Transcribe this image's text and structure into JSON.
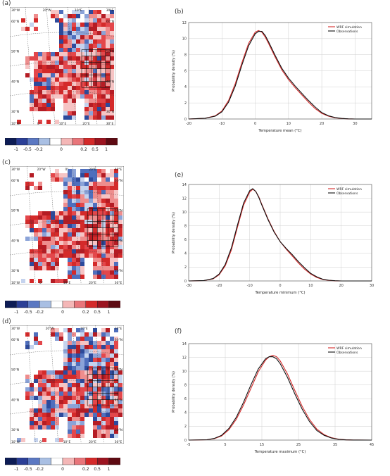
{
  "panels": [
    {
      "map_letter": "(a)",
      "chart_letter": "(b)",
      "colorbar_ticks": [
        "-1",
        "-0.5",
        "-0.2",
        "0",
        "0.2",
        "0.5",
        "1"
      ],
      "map_top_ticks": [
        "30°W",
        "20°W",
        "10°E",
        "30°E"
      ],
      "map_bottom_ticks": [
        "10°W",
        "0°",
        "10°E",
        "20°E",
        "30°E"
      ],
      "map_side_ticks": [
        "60°N",
        "50°N",
        "40°N",
        "30°N"
      ]
    },
    {
      "map_letter": "(c)",
      "chart_letter": "(e)",
      "colorbar_ticks": [
        "-1",
        "-0.5",
        "-0.2",
        "0",
        "0.2",
        "0.5",
        "1"
      ],
      "map_top_ticks": [
        "30°W",
        "20°W",
        "0°",
        "20°E",
        "40°E"
      ],
      "map_bottom_ticks": [
        "10°W",
        "0°",
        "10°E",
        "20°E",
        "30°E"
      ],
      "map_side_ticks": [
        "60°N",
        "50°N",
        "40°N",
        "30°N"
      ]
    },
    {
      "map_letter": "(d)",
      "chart_letter": "(f)",
      "colorbar_ticks": [
        "-1",
        "-0.5",
        "-0.2",
        "0",
        "0.2",
        "0.5",
        "1"
      ],
      "map_top_ticks": [
        "30°W",
        "20°W",
        "10°E",
        "30°E"
      ],
      "map_bottom_ticks": [
        "10°W",
        "0°",
        "10°E",
        "20°E",
        "30°E"
      ],
      "map_side_ticks": [
        "60°N",
        "50°N",
        "40°N",
        "30°N"
      ]
    }
  ],
  "colors": {
    "red": "#d42a2a",
    "black": "#111111",
    "grid": "#cfcfcf"
  },
  "chart_data": [
    {
      "type": "line",
      "xlabel": "Temperature mean (°C)",
      "ylabel": "Probability density (%)",
      "xlim": [
        -20,
        35
      ],
      "ylim": [
        0,
        12
      ],
      "xticks": [
        -20,
        -10,
        0,
        10,
        20,
        30
      ],
      "yticks": [
        0,
        2,
        4,
        6,
        8,
        10,
        12
      ],
      "legend_position": "top-right",
      "series": [
        {
          "name": "WRF simulation",
          "color": "#d42a2a",
          "x": [
            -20,
            -15,
            -12,
            -10,
            -8,
            -6,
            -4,
            -2,
            0,
            1,
            2,
            3,
            4,
            6,
            8,
            10,
            12,
            14,
            16,
            18,
            20,
            22,
            24,
            26,
            28,
            30,
            35
          ],
          "y": [
            0,
            0.1,
            0.4,
            1.0,
            2.3,
            4.4,
            7.0,
            9.4,
            10.8,
            11.0,
            10.8,
            10.2,
            9.4,
            7.7,
            6.1,
            4.9,
            3.9,
            3.0,
            2.1,
            1.3,
            0.7,
            0.35,
            0.15,
            0.06,
            0.02,
            0,
            0
          ]
        },
        {
          "name": "Observations",
          "color": "#111111",
          "x": [
            -20,
            -15,
            -12,
            -10,
            -8,
            -6,
            -4,
            -2,
            0,
            1,
            2,
            3,
            4,
            6,
            8,
            10,
            12,
            14,
            16,
            18,
            20,
            22,
            24,
            26,
            28,
            30,
            35
          ],
          "y": [
            0,
            0.1,
            0.35,
            0.9,
            2.1,
            4.1,
            6.7,
            9.1,
            10.6,
            10.9,
            10.9,
            10.4,
            9.6,
            7.9,
            6.3,
            5.1,
            4.1,
            3.2,
            2.3,
            1.5,
            0.8,
            0.4,
            0.18,
            0.07,
            0.02,
            0,
            0
          ]
        }
      ]
    },
    {
      "type": "line",
      "xlabel": "Temperature minimum (°C)",
      "ylabel": "Probability density (%)",
      "xlim": [
        -30,
        30
      ],
      "ylim": [
        0,
        14
      ],
      "xticks": [
        -30,
        -20,
        -10,
        0,
        10,
        20,
        30
      ],
      "yticks": [
        0,
        2,
        4,
        6,
        8,
        10,
        12,
        14
      ],
      "legend_position": "top-right",
      "series": [
        {
          "name": "WRF simulation",
          "color": "#d42a2a",
          "x": [
            -30,
            -25,
            -22,
            -20,
            -18,
            -16,
            -14,
            -12,
            -10,
            -9,
            -8,
            -7,
            -6,
            -4,
            -2,
            0,
            2,
            4,
            6,
            8,
            10,
            12,
            14,
            16,
            18,
            20,
            30
          ],
          "y": [
            0,
            0.05,
            0.3,
            0.9,
            2.2,
            4.5,
            7.8,
            11.0,
            12.9,
            13.3,
            13.0,
            12.2,
            11.1,
            9.0,
            7.2,
            5.7,
            4.6,
            3.6,
            2.6,
            1.7,
            1.0,
            0.5,
            0.2,
            0.08,
            0.02,
            0,
            0
          ]
        },
        {
          "name": "Observations",
          "color": "#111111",
          "x": [
            -30,
            -25,
            -22,
            -20,
            -18,
            -16,
            -14,
            -12,
            -10,
            -9,
            -8,
            -7,
            -6,
            -4,
            -2,
            0,
            2,
            4,
            6,
            8,
            10,
            12,
            14,
            16,
            18,
            20,
            30
          ],
          "y": [
            0,
            0.06,
            0.35,
            1.0,
            2.4,
            4.8,
            8.1,
            11.3,
            13.1,
            13.4,
            13.0,
            12.1,
            11.0,
            8.9,
            7.1,
            5.7,
            4.7,
            3.8,
            2.8,
            1.9,
            1.1,
            0.6,
            0.25,
            0.1,
            0.03,
            0,
            0
          ]
        }
      ]
    },
    {
      "type": "line",
      "xlabel": "Temperature maximum (°C)",
      "ylabel": "Probability density (%)",
      "xlim": [
        -5,
        45
      ],
      "ylim": [
        0,
        14
      ],
      "xticks": [
        -5,
        5,
        15,
        25,
        35,
        45
      ],
      "yticks": [
        0,
        2,
        4,
        6,
        8,
        10,
        12,
        14
      ],
      "legend_position": "top-right",
      "series": [
        {
          "name": "WRF simulation",
          "color": "#d42a2a",
          "x": [
            -5,
            0,
            2,
            4,
            6,
            8,
            10,
            12,
            14,
            16,
            17,
            18,
            19,
            20,
            22,
            24,
            26,
            28,
            30,
            32,
            34,
            36,
            38,
            40,
            45
          ],
          "y": [
            0,
            0.05,
            0.2,
            0.6,
            1.5,
            3.0,
            5.1,
            7.5,
            9.9,
            11.6,
            12.1,
            12.3,
            12.1,
            11.5,
            9.6,
            7.2,
            4.9,
            3.0,
            1.6,
            0.8,
            0.35,
            0.12,
            0.04,
            0.01,
            0
          ]
        },
        {
          "name": "Observations",
          "color": "#111111",
          "x": [
            -5,
            0,
            2,
            4,
            6,
            8,
            10,
            12,
            14,
            16,
            17,
            18,
            19,
            20,
            22,
            24,
            26,
            28,
            30,
            32,
            34,
            36,
            38,
            40,
            45
          ],
          "y": [
            0,
            0.05,
            0.25,
            0.7,
            1.7,
            3.3,
            5.5,
            8.0,
            10.3,
            11.8,
            12.1,
            12.1,
            11.8,
            11.1,
            9.1,
            6.7,
            4.5,
            2.7,
            1.4,
            0.7,
            0.3,
            0.1,
            0.03,
            0.01,
            0
          ]
        }
      ]
    }
  ]
}
